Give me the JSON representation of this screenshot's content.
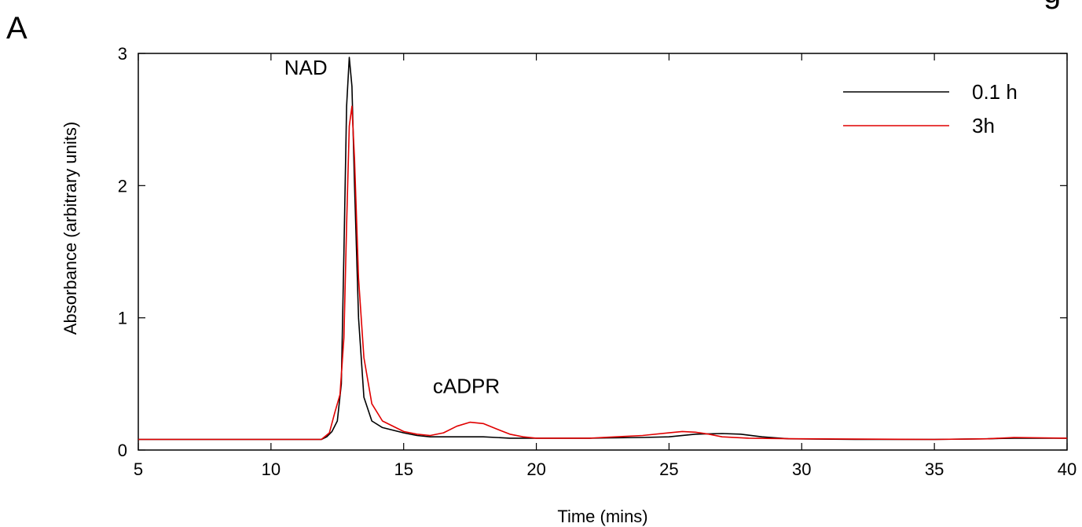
{
  "panel_label": "A",
  "corner_fragment": "g",
  "chart_data": {
    "type": "line",
    "title": "",
    "xlabel": "Time (mins)",
    "ylabel": "Absorbance (arbitrary units)",
    "xlim": [
      5,
      40
    ],
    "ylim": [
      0,
      3
    ],
    "xticks": [
      5,
      10,
      15,
      20,
      25,
      30,
      35,
      40
    ],
    "yticks": [
      0,
      1,
      2,
      3
    ],
    "grid": false,
    "legend_position": "top-right",
    "annotations": [
      {
        "text": "NAD",
        "x": 10.5,
        "y": 2.84
      },
      {
        "text": "cADPR",
        "x": 16.1,
        "y": 0.43
      }
    ],
    "series": [
      {
        "name": "0.1 h",
        "color": "#000000",
        "points": [
          [
            5,
            0.08
          ],
          [
            10,
            0.08
          ],
          [
            11.9,
            0.08
          ],
          [
            12.1,
            0.1
          ],
          [
            12.3,
            0.14
          ],
          [
            12.5,
            0.22
          ],
          [
            12.65,
            0.5
          ],
          [
            12.75,
            1.5
          ],
          [
            12.85,
            2.6
          ],
          [
            12.95,
            2.97
          ],
          [
            13.05,
            2.75
          ],
          [
            13.15,
            2.0
          ],
          [
            13.3,
            1.0
          ],
          [
            13.5,
            0.4
          ],
          [
            13.8,
            0.22
          ],
          [
            14.2,
            0.17
          ],
          [
            15,
            0.13
          ],
          [
            15.5,
            0.11
          ],
          [
            16,
            0.1
          ],
          [
            17,
            0.1
          ],
          [
            18,
            0.1
          ],
          [
            19,
            0.09
          ],
          [
            20,
            0.09
          ],
          [
            22,
            0.09
          ],
          [
            24,
            0.095
          ],
          [
            25,
            0.1
          ],
          [
            26,
            0.12
          ],
          [
            27,
            0.125
          ],
          [
            27.7,
            0.12
          ],
          [
            28.5,
            0.1
          ],
          [
            29.5,
            0.085
          ],
          [
            32,
            0.08
          ],
          [
            35,
            0.08
          ],
          [
            37,
            0.085
          ],
          [
            38,
            0.09
          ],
          [
            40,
            0.09
          ]
        ]
      },
      {
        "name": "3h",
        "color": "#e00000",
        "points": [
          [
            5,
            0.08
          ],
          [
            10,
            0.08
          ],
          [
            11.9,
            0.08
          ],
          [
            12.2,
            0.13
          ],
          [
            12.4,
            0.28
          ],
          [
            12.6,
            0.42
          ],
          [
            12.75,
            0.85
          ],
          [
            12.85,
            1.7
          ],
          [
            12.95,
            2.45
          ],
          [
            13.05,
            2.6
          ],
          [
            13.15,
            2.2
          ],
          [
            13.3,
            1.3
          ],
          [
            13.5,
            0.7
          ],
          [
            13.8,
            0.35
          ],
          [
            14.2,
            0.22
          ],
          [
            15,
            0.14
          ],
          [
            15.5,
            0.12
          ],
          [
            16,
            0.11
          ],
          [
            16.5,
            0.13
          ],
          [
            17,
            0.18
          ],
          [
            17.5,
            0.21
          ],
          [
            18,
            0.2
          ],
          [
            18.5,
            0.16
          ],
          [
            19,
            0.12
          ],
          [
            19.5,
            0.1
          ],
          [
            20,
            0.09
          ],
          [
            22,
            0.09
          ],
          [
            23,
            0.1
          ],
          [
            24,
            0.11
          ],
          [
            25,
            0.13
          ],
          [
            25.5,
            0.14
          ],
          [
            26,
            0.135
          ],
          [
            26.5,
            0.12
          ],
          [
            27,
            0.1
          ],
          [
            28,
            0.09
          ],
          [
            30,
            0.085
          ],
          [
            35,
            0.08
          ],
          [
            37,
            0.085
          ],
          [
            38,
            0.095
          ],
          [
            40,
            0.09
          ]
        ]
      }
    ]
  }
}
